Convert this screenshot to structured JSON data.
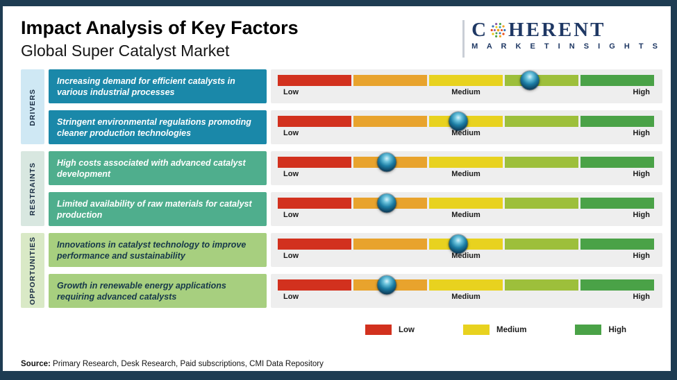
{
  "header": {
    "title": "Impact Analysis of Key Factors",
    "subtitle": "Global Super Catalyst Market"
  },
  "logo": {
    "line1_prefix": "C",
    "line1_suffix": "HERENT",
    "line2": "M A R K E T   I N S I G H T S",
    "icon": "dotted-globe-icon",
    "brand_color": "#1f3864"
  },
  "groups": [
    {
      "label": "DRIVERS",
      "color": "#cfe8f4"
    },
    {
      "label": "RESTRAINTS",
      "color": "#d8e7e0"
    },
    {
      "label": "OPPORTUNITIES",
      "color": "#d9e9c6"
    }
  ],
  "scale": {
    "low": "Low",
    "medium": "Medium",
    "high": "High",
    "segment_colors": [
      "#d2311e",
      "#e8a32d",
      "#e8d21f",
      "#9dbf3b",
      "#4aa247"
    ]
  },
  "rows": [
    {
      "group": "DRIVERS",
      "text": "Increasing demand for efficient catalysts in various industrial processes",
      "box_color": "#1a88a9",
      "text_color": "#ffffff",
      "marker_percent": 67,
      "impact": "Medium-High"
    },
    {
      "group": "DRIVERS",
      "text": "Stringent environmental regulations promoting cleaner production technologies",
      "box_color": "#1a88a9",
      "text_color": "#ffffff",
      "marker_percent": 48,
      "impact": "Medium"
    },
    {
      "group": "RESTRAINTS",
      "text": "High costs associated with advanced catalyst development",
      "box_color": "#4fae8d",
      "text_color": "#ffffff",
      "marker_percent": 29,
      "impact": "Low-Medium"
    },
    {
      "group": "RESTRAINTS",
      "text": "Limited availability of raw materials for catalyst production",
      "box_color": "#4fae8d",
      "text_color": "#ffffff",
      "marker_percent": 29,
      "impact": "Low-Medium"
    },
    {
      "group": "OPPORTUNITIES",
      "text": "Innovations in catalyst technology to improve performance and sustainability",
      "box_color": "#a7cf7f",
      "text_color": "#16384a",
      "marker_percent": 48,
      "impact": "Medium"
    },
    {
      "group": "OPPORTUNITIES",
      "text": "Growth in renewable energy applications requiring advanced catalysts",
      "box_color": "#a7cf7f",
      "text_color": "#16384a",
      "marker_percent": 29,
      "impact": "Low-Medium"
    }
  ],
  "legend": [
    {
      "label": "Low",
      "color": "#d2311e"
    },
    {
      "label": "Medium",
      "color": "#e8d21f"
    },
    {
      "label": "High",
      "color": "#4aa247"
    }
  ],
  "source": {
    "label": "Source:",
    "text": " Primary Research, Desk Research, Paid subscriptions, CMI Data Repository"
  },
  "chart_data": {
    "type": "bar",
    "title": "Impact Analysis of Key Factors",
    "subtitle": "Global Super Catalyst Market",
    "scale_labels": [
      "Low",
      "Medium",
      "High"
    ],
    "groups": [
      "Drivers",
      "Drivers",
      "Restraints",
      "Restraints",
      "Opportunities",
      "Opportunities"
    ],
    "categories": [
      "Increasing demand for efficient catalysts in various industrial processes",
      "Stringent environmental regulations promoting cleaner production technologies",
      "High costs associated with advanced catalyst development",
      "Limited availability of raw materials for catalyst production",
      "Innovations in catalyst technology to improve performance and sustainability",
      "Growth in renewable energy applications requiring advanced catalysts"
    ],
    "series": [
      {
        "name": "Impact position (% along Low→High scale)",
        "values": [
          67,
          48,
          29,
          29,
          48,
          29
        ]
      }
    ],
    "impact_labels": [
      "Medium-High",
      "Medium",
      "Low-Medium",
      "Low-Medium",
      "Medium",
      "Low-Medium"
    ],
    "legend": [
      "Low",
      "Medium",
      "High"
    ],
    "legend_position": "bottom-right",
    "grid": false
  }
}
